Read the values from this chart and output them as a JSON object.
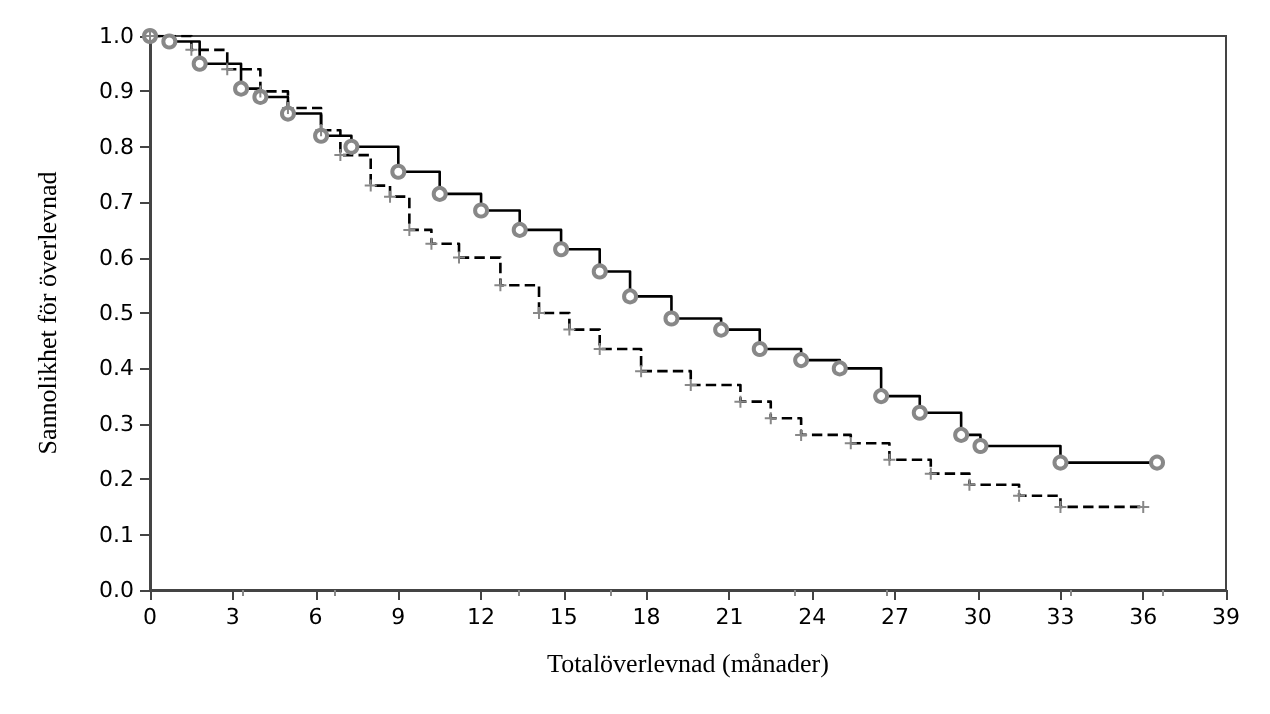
{
  "chart_data": {
    "type": "step",
    "xlabel": "Totalöverlevnad (månader)",
    "ylabel": "Sannolikhet för överlevnad",
    "xlim": [
      0,
      39
    ],
    "xticks": [
      0,
      3,
      6,
      9,
      12,
      15,
      18,
      21,
      24,
      27,
      30,
      33,
      36,
      39
    ],
    "ylim": [
      0,
      1.0
    ],
    "yticks": [
      {
        "value": 0,
        "label": "0.0"
      },
      {
        "value": 0.1,
        "label": "0.1"
      },
      {
        "value": 0.2,
        "label": "0.2"
      },
      {
        "value": 0.3,
        "label": "0.3"
      },
      {
        "value": 0.4,
        "label": "0.4"
      },
      {
        "value": 0.5,
        "label": "0.5"
      },
      {
        "value": 0.6,
        "label": "0.6"
      },
      {
        "value": 0.7,
        "label": "0.7"
      },
      {
        "value": 0.8,
        "label": "0.8"
      },
      {
        "value": 0.9,
        "label": "0.9"
      },
      {
        "value": 1.0,
        "label": "1.0"
      }
    ],
    "grid": false,
    "series": [
      {
        "color": "#000000",
        "line_style": "solid",
        "marker": "circle",
        "x": [
          0,
          0.7,
          1.8,
          3.3,
          4,
          5,
          6.2,
          7.3,
          9,
          10.5,
          12,
          13.4,
          14.9,
          16.3,
          17.4,
          18.9,
          20.7,
          22.1,
          23.6,
          25,
          26.5,
          27.9,
          29.4,
          30.1,
          33,
          36.5
        ],
        "values": [
          1.0,
          0.99,
          0.95,
          0.905,
          0.89,
          0.86,
          0.82,
          0.8,
          0.755,
          0.715,
          0.685,
          0.65,
          0.615,
          0.575,
          0.53,
          0.49,
          0.47,
          0.435,
          0.415,
          0.4,
          0.35,
          0.32,
          0.28,
          0.26,
          0.23,
          0.23
        ]
      },
      {
        "color": "#000000",
        "line_style": "dashed",
        "marker": "cross",
        "x": [
          0,
          1.5,
          2.8,
          4,
          5,
          6.2,
          6.9,
          8,
          8.7,
          9.4,
          10.2,
          11.2,
          12.7,
          14.1,
          15.2,
          16.3,
          17.8,
          19.6,
          21.4,
          22.5,
          23.6,
          25.4,
          26.8,
          28.3,
          29.7,
          31.5,
          33,
          36
        ],
        "values": [
          1.0,
          0.975,
          0.94,
          0.9,
          0.87,
          0.83,
          0.785,
          0.73,
          0.71,
          0.65,
          0.625,
          0.6,
          0.55,
          0.5,
          0.47,
          0.435,
          0.395,
          0.37,
          0.34,
          0.31,
          0.28,
          0.265,
          0.235,
          0.21,
          0.19,
          0.17,
          0.15,
          0.15
        ]
      }
    ]
  }
}
